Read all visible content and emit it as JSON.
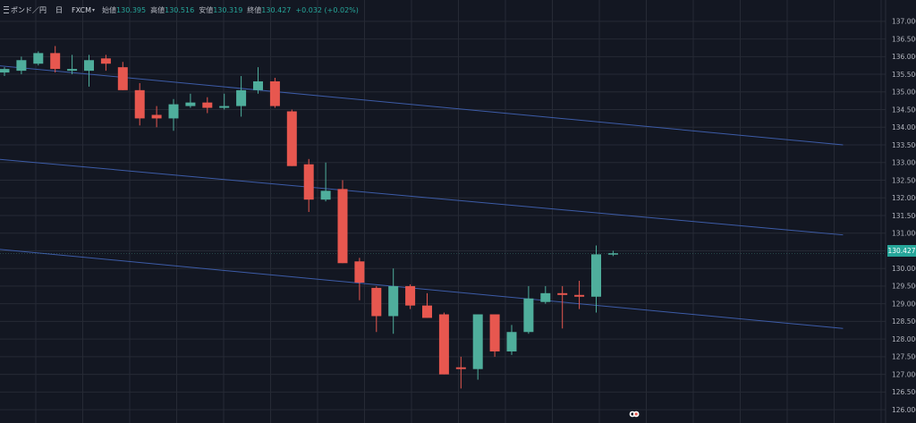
{
  "header": {
    "symbol": "ポンド／円",
    "timeframe": "日",
    "exchange": "FXCM",
    "open_label": "始値",
    "open": "130.395",
    "high_label": "高値",
    "high": "130.516",
    "low_label": "安値",
    "low": "130.319",
    "close_label": "終値",
    "close": "130.427",
    "change": "+0.032 (+0.02%)"
  },
  "colors": {
    "background": "#131722",
    "grid": "#262a35",
    "up": "#4fae9c",
    "down": "#e7574f",
    "trendline": "#3d5ca8",
    "axis_text": "#b2b5be",
    "price_tag": "#26a69a"
  },
  "price_tag": "130.427",
  "chart_data": {
    "type": "candlestick",
    "y_axis_position": "right",
    "ylim": [
      125.8,
      137.3
    ],
    "yticks": [
      "126.000",
      "126.500",
      "127.000",
      "127.500",
      "128.000",
      "128.500",
      "129.000",
      "129.500",
      "130.000",
      "130.500",
      "131.000",
      "131.500",
      "132.000",
      "132.500",
      "133.000",
      "133.500",
      "134.000",
      "134.500",
      "135.000",
      "135.500",
      "136.000",
      "136.500",
      "137.000"
    ],
    "grid": true,
    "last_price": 130.427,
    "candles": [
      {
        "o": 135.55,
        "h": 135.7,
        "l": 135.45,
        "c": 135.65
      },
      {
        "o": 135.6,
        "h": 136.0,
        "l": 135.5,
        "c": 135.9
      },
      {
        "o": 135.8,
        "h": 136.15,
        "l": 135.75,
        "c": 136.1
      },
      {
        "o": 136.1,
        "h": 136.3,
        "l": 135.55,
        "c": 135.65
      },
      {
        "o": 135.6,
        "h": 136.05,
        "l": 135.5,
        "c": 135.65
      },
      {
        "o": 135.6,
        "h": 136.05,
        "l": 135.15,
        "c": 135.9
      },
      {
        "o": 135.95,
        "h": 136.05,
        "l": 135.6,
        "c": 135.8
      },
      {
        "o": 135.7,
        "h": 135.85,
        "l": 135.05,
        "c": 135.05
      },
      {
        "o": 135.05,
        "h": 135.25,
        "l": 134.05,
        "c": 134.25
      },
      {
        "o": 134.35,
        "h": 134.6,
        "l": 134.0,
        "c": 134.25
      },
      {
        "o": 134.25,
        "h": 134.8,
        "l": 133.9,
        "c": 134.65
      },
      {
        "o": 134.6,
        "h": 134.95,
        "l": 134.55,
        "c": 134.7
      },
      {
        "o": 134.7,
        "h": 134.85,
        "l": 134.4,
        "c": 134.55
      },
      {
        "o": 134.55,
        "h": 134.95,
        "l": 134.5,
        "c": 134.6
      },
      {
        "o": 134.6,
        "h": 135.45,
        "l": 134.3,
        "c": 135.05
      },
      {
        "o": 135.05,
        "h": 135.7,
        "l": 134.95,
        "c": 135.3
      },
      {
        "o": 135.3,
        "h": 135.4,
        "l": 134.55,
        "c": 134.6
      },
      {
        "o": 134.45,
        "h": 134.5,
        "l": 132.9,
        "c": 132.9
      },
      {
        "o": 132.95,
        "h": 133.1,
        "l": 131.6,
        "c": 131.95
      },
      {
        "o": 131.95,
        "h": 133.0,
        "l": 131.9,
        "c": 132.2
      },
      {
        "o": 132.25,
        "h": 132.5,
        "l": 130.15,
        "c": 130.15
      },
      {
        "o": 130.2,
        "h": 130.3,
        "l": 129.1,
        "c": 129.6
      },
      {
        "o": 129.45,
        "h": 129.5,
        "l": 128.2,
        "c": 128.65
      },
      {
        "o": 128.65,
        "h": 130.0,
        "l": 128.15,
        "c": 129.5
      },
      {
        "o": 129.5,
        "h": 129.55,
        "l": 128.85,
        "c": 128.95
      },
      {
        "o": 128.95,
        "h": 129.3,
        "l": 128.6,
        "c": 128.6
      },
      {
        "o": 128.7,
        "h": 128.75,
        "l": 127.0,
        "c": 127.0
      },
      {
        "o": 127.2,
        "h": 127.5,
        "l": 126.6,
        "c": 127.15
      },
      {
        "o": 127.15,
        "h": 128.7,
        "l": 126.85,
        "c": 128.7
      },
      {
        "o": 128.7,
        "h": 128.7,
        "l": 127.5,
        "c": 127.65
      },
      {
        "o": 127.65,
        "h": 128.4,
        "l": 127.55,
        "c": 128.2
      },
      {
        "o": 128.2,
        "h": 129.5,
        "l": 128.15,
        "c": 129.15
      },
      {
        "o": 129.05,
        "h": 129.5,
        "l": 129.0,
        "c": 129.3
      },
      {
        "o": 129.3,
        "h": 129.5,
        "l": 128.3,
        "c": 129.25
      },
      {
        "o": 129.25,
        "h": 129.65,
        "l": 128.85,
        "c": 129.2
      },
      {
        "o": 129.2,
        "h": 130.65,
        "l": 128.75,
        "c": 130.4
      },
      {
        "o": 130.4,
        "h": 130.5,
        "l": 130.35,
        "c": 130.43
      }
    ],
    "trendlines": [
      {
        "from": {
          "candle": -0.5,
          "price": 135.75
        },
        "to": {
          "candle": 49.6,
          "price": 133.5
        }
      },
      {
        "from": {
          "candle": -0.5,
          "price": 133.1
        },
        "to": {
          "candle": 49.6,
          "price": 130.95
        }
      },
      {
        "from": {
          "candle": -0.5,
          "price": 130.55
        },
        "to": {
          "candle": 49.6,
          "price": 128.3
        }
      }
    ]
  }
}
